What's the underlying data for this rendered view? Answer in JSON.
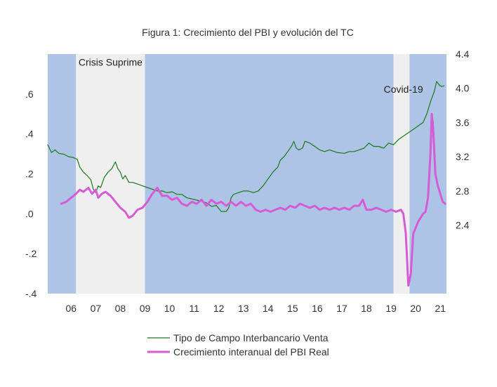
{
  "chart_data": {
    "type": "line",
    "title": "Figura 1: Crecimiento del PBI y evolución del TC",
    "x_ticks": [
      "06",
      "07",
      "08",
      "09",
      "10",
      "11",
      "12",
      "13",
      "14",
      "15",
      "16",
      "17",
      "18",
      "19",
      "20",
      "21"
    ],
    "x_range": [
      2005.55,
      2021.75
    ],
    "y_left": {
      "ticks": [
        ".6",
        ".4",
        ".2",
        ".0",
        "-.2",
        "-.4"
      ],
      "range": [
        -0.4,
        0.8
      ]
    },
    "y_right": {
      "ticks": [
        "4.4",
        "4.0",
        "3.6",
        "3.2",
        "2.8",
        "2.4"
      ],
      "range": [
        1.6,
        4.4
      ]
    },
    "shaded_periods": [
      {
        "from": 2005.55,
        "to": 2006.7,
        "color": "#aec4e7"
      },
      {
        "from": 2006.7,
        "to": 2009.5,
        "color": "#efefef"
      },
      {
        "from": 2009.5,
        "to": 2019.6,
        "color": "#aec4e7"
      },
      {
        "from": 2019.6,
        "to": 2020.25,
        "color": "#efefef"
      },
      {
        "from": 2020.25,
        "to": 2021.75,
        "color": "#aec4e7"
      }
    ],
    "annotations": [
      {
        "text": "Crisis Suprime",
        "x": 2008.1,
        "y": 0.76
      },
      {
        "text": "Covid-19",
        "x": 2020.0,
        "y": 3.99
      }
    ],
    "series": [
      {
        "name": "Tipo de Campo Interbancario Venta",
        "axis": "right",
        "color": "#1a7a1a",
        "points": [
          [
            2005.55,
            3.34
          ],
          [
            2005.7,
            3.25
          ],
          [
            2005.85,
            3.28
          ],
          [
            2006.0,
            3.24
          ],
          [
            2006.2,
            3.23
          ],
          [
            2006.4,
            3.2
          ],
          [
            2006.6,
            3.19
          ],
          [
            2006.75,
            3.17
          ],
          [
            2006.85,
            3.08
          ],
          [
            2007.0,
            3.02
          ],
          [
            2007.15,
            2.98
          ],
          [
            2007.3,
            2.93
          ],
          [
            2007.4,
            2.82
          ],
          [
            2007.5,
            2.78
          ],
          [
            2007.6,
            2.86
          ],
          [
            2007.7,
            2.84
          ],
          [
            2007.85,
            2.96
          ],
          [
            2008.0,
            3.02
          ],
          [
            2008.15,
            3.06
          ],
          [
            2008.3,
            3.14
          ],
          [
            2008.4,
            3.06
          ],
          [
            2008.5,
            3.02
          ],
          [
            2008.6,
            2.94
          ],
          [
            2008.7,
            2.98
          ],
          [
            2008.85,
            2.9
          ],
          [
            2009.0,
            2.9
          ],
          [
            2009.2,
            2.88
          ],
          [
            2009.4,
            2.86
          ],
          [
            2009.6,
            2.84
          ],
          [
            2009.8,
            2.82
          ],
          [
            2010.0,
            2.8
          ],
          [
            2010.2,
            2.8
          ],
          [
            2010.4,
            2.78
          ],
          [
            2010.6,
            2.79
          ],
          [
            2010.8,
            2.76
          ],
          [
            2011.0,
            2.76
          ],
          [
            2011.2,
            2.72
          ],
          [
            2011.5,
            2.7
          ],
          [
            2011.8,
            2.68
          ],
          [
            2012.0,
            2.66
          ],
          [
            2012.2,
            2.62
          ],
          [
            2012.4,
            2.63
          ],
          [
            2012.6,
            2.56
          ],
          [
            2012.8,
            2.56
          ],
          [
            2012.9,
            2.6
          ],
          [
            2013.0,
            2.72
          ],
          [
            2013.1,
            2.76
          ],
          [
            2013.3,
            2.78
          ],
          [
            2013.5,
            2.8
          ],
          [
            2013.7,
            2.8
          ],
          [
            2013.9,
            2.78
          ],
          [
            2014.1,
            2.8
          ],
          [
            2014.3,
            2.86
          ],
          [
            2014.5,
            2.94
          ],
          [
            2014.7,
            3.02
          ],
          [
            2014.9,
            3.08
          ],
          [
            2015.0,
            3.16
          ],
          [
            2015.15,
            3.2
          ],
          [
            2015.3,
            3.26
          ],
          [
            2015.45,
            3.32
          ],
          [
            2015.55,
            3.38
          ],
          [
            2015.65,
            3.3
          ],
          [
            2015.75,
            3.28
          ],
          [
            2015.9,
            3.3
          ],
          [
            2016.0,
            3.38
          ],
          [
            2016.2,
            3.36
          ],
          [
            2016.4,
            3.32
          ],
          [
            2016.6,
            3.28
          ],
          [
            2016.8,
            3.26
          ],
          [
            2017.0,
            3.28
          ],
          [
            2017.3,
            3.25
          ],
          [
            2017.6,
            3.24
          ],
          [
            2017.8,
            3.26
          ],
          [
            2018.0,
            3.26
          ],
          [
            2018.2,
            3.28
          ],
          [
            2018.4,
            3.3
          ],
          [
            2018.6,
            3.36
          ],
          [
            2018.8,
            3.32
          ],
          [
            2019.0,
            3.32
          ],
          [
            2019.2,
            3.3
          ],
          [
            2019.4,
            3.36
          ],
          [
            2019.6,
            3.34
          ],
          [
            2019.8,
            3.4
          ],
          [
            2020.0,
            3.44
          ],
          [
            2020.2,
            3.48
          ],
          [
            2020.4,
            3.52
          ],
          [
            2020.6,
            3.56
          ],
          [
            2020.8,
            3.6
          ],
          [
            2020.95,
            3.7
          ],
          [
            2021.1,
            3.84
          ],
          [
            2021.25,
            3.96
          ],
          [
            2021.35,
            4.08
          ],
          [
            2021.45,
            4.04
          ],
          [
            2021.55,
            4.02
          ],
          [
            2021.65,
            4.03
          ]
        ]
      },
      {
        "name": "Crecimiento interanual del PBI Real",
        "axis": "left",
        "color": "#d65cd6",
        "points": [
          [
            2006.1,
            0.05
          ],
          [
            2006.3,
            0.06
          ],
          [
            2006.5,
            0.08
          ],
          [
            2006.7,
            0.1
          ],
          [
            2006.85,
            0.12
          ],
          [
            2007.0,
            0.11
          ],
          [
            2007.2,
            0.13
          ],
          [
            2007.35,
            0.1
          ],
          [
            2007.5,
            0.12
          ],
          [
            2007.6,
            0.08
          ],
          [
            2007.75,
            0.1
          ],
          [
            2007.9,
            0.11
          ],
          [
            2008.1,
            0.09
          ],
          [
            2008.3,
            0.06
          ],
          [
            2008.5,
            0.03
          ],
          [
            2008.7,
            0.01
          ],
          [
            2008.85,
            -0.02
          ],
          [
            2009.0,
            -0.01
          ],
          [
            2009.2,
            0.02
          ],
          [
            2009.4,
            0.03
          ],
          [
            2009.6,
            0.06
          ],
          [
            2009.8,
            0.1
          ],
          [
            2010.0,
            0.13
          ],
          [
            2010.2,
            0.09
          ],
          [
            2010.4,
            0.09
          ],
          [
            2010.6,
            0.07
          ],
          [
            2010.8,
            0.08
          ],
          [
            2011.0,
            0.05
          ],
          [
            2011.2,
            0.04
          ],
          [
            2011.4,
            0.06
          ],
          [
            2011.6,
            0.05
          ],
          [
            2011.8,
            0.07
          ],
          [
            2012.0,
            0.04
          ],
          [
            2012.2,
            0.07
          ],
          [
            2012.4,
            0.05
          ],
          [
            2012.6,
            0.06
          ],
          [
            2012.8,
            0.04
          ],
          [
            2013.0,
            0.06
          ],
          [
            2013.2,
            0.04
          ],
          [
            2013.4,
            0.06
          ],
          [
            2013.6,
            0.04
          ],
          [
            2013.8,
            0.05
          ],
          [
            2014.0,
            0.02
          ],
          [
            2014.2,
            0.01
          ],
          [
            2014.4,
            0.02
          ],
          [
            2014.6,
            0.01
          ],
          [
            2014.8,
            0.02
          ],
          [
            2015.0,
            0.03
          ],
          [
            2015.2,
            0.02
          ],
          [
            2015.4,
            0.04
          ],
          [
            2015.6,
            0.03
          ],
          [
            2015.8,
            0.05
          ],
          [
            2016.0,
            0.04
          ],
          [
            2016.2,
            0.03
          ],
          [
            2016.4,
            0.04
          ],
          [
            2016.6,
            0.02
          ],
          [
            2016.8,
            0.03
          ],
          [
            2017.0,
            0.02
          ],
          [
            2017.2,
            0.03
          ],
          [
            2017.4,
            0.02
          ],
          [
            2017.6,
            0.03
          ],
          [
            2017.8,
            0.02
          ],
          [
            2018.0,
            0.04
          ],
          [
            2018.2,
            0.04
          ],
          [
            2018.35,
            0.07
          ],
          [
            2018.5,
            0.02
          ],
          [
            2018.7,
            0.02
          ],
          [
            2018.9,
            0.03
          ],
          [
            2019.1,
            0.02
          ],
          [
            2019.3,
            0.01
          ],
          [
            2019.5,
            0.02
          ],
          [
            2019.7,
            0.01
          ],
          [
            2019.9,
            0.02
          ],
          [
            2020.0,
            0.0
          ],
          [
            2020.1,
            -0.1
          ],
          [
            2020.2,
            -0.36
          ],
          [
            2020.3,
            -0.3
          ],
          [
            2020.4,
            -0.1
          ],
          [
            2020.6,
            -0.04
          ],
          [
            2020.8,
            0.0
          ],
          [
            2020.9,
            0.01
          ],
          [
            2021.0,
            0.08
          ],
          [
            2021.1,
            0.3
          ],
          [
            2021.15,
            0.5
          ],
          [
            2021.2,
            0.45
          ],
          [
            2021.3,
            0.2
          ],
          [
            2021.4,
            0.14
          ],
          [
            2021.5,
            0.1
          ],
          [
            2021.6,
            0.06
          ],
          [
            2021.7,
            0.05
          ]
        ]
      }
    ]
  }
}
